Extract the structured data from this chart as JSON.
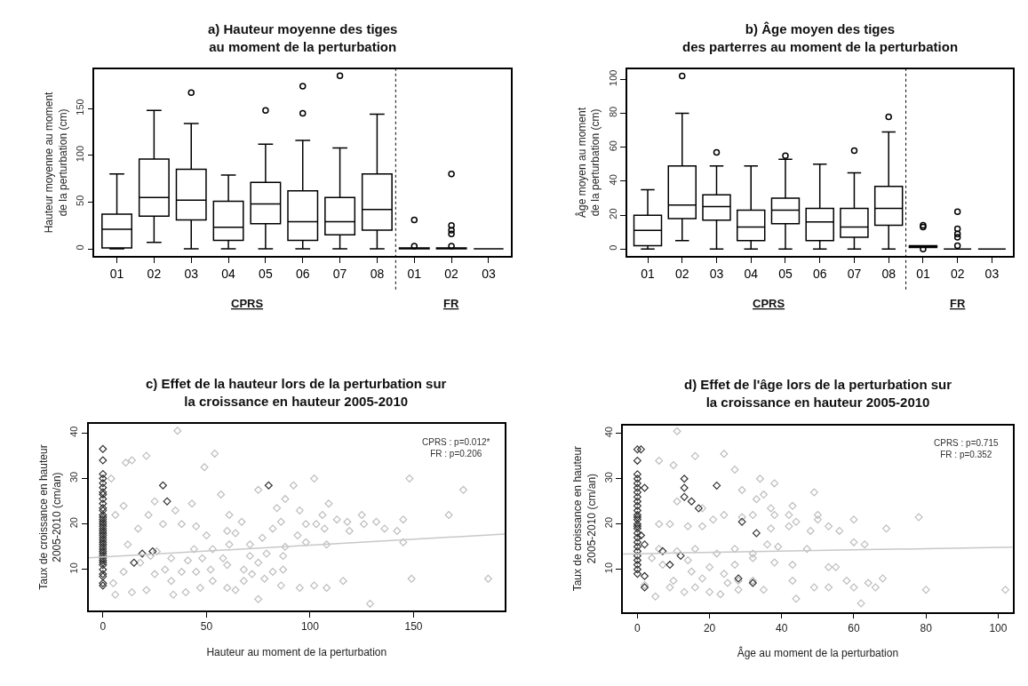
{
  "chart_data": [
    {
      "type": "box",
      "title": "a) Hauteur moyenne des tiges\nau moment de la perturbation",
      "ylabel": "Hauteur moyenne au moment\nde la perturbation (cm)",
      "categories": [
        "01",
        "02",
        "03",
        "04",
        "05",
        "06",
        "07",
        "08",
        "01",
        "02",
        "03"
      ],
      "color": "#000000",
      "ylim": [
        -7.5,
        192
      ],
      "yticks": [
        0,
        50,
        100,
        150
      ],
      "boxes": [
        {
          "low": 0,
          "q1": 1,
          "median": 21,
          "q3": 37,
          "high": 80
        },
        {
          "low": 7,
          "q1": 35,
          "median": 55,
          "q3": 96,
          "high": 148
        },
        {
          "low": 0,
          "q1": 31,
          "median": 52,
          "q3": 85,
          "high": 134,
          "outliers": [
            167
          ]
        },
        {
          "low": 0,
          "q1": 9,
          "median": 23,
          "q3": 51,
          "high": 79
        },
        {
          "low": 0,
          "q1": 27,
          "median": 48,
          "q3": 71,
          "high": 112,
          "outliers": [
            148
          ]
        },
        {
          "low": 0,
          "q1": 9,
          "median": 29,
          "q3": 62,
          "high": 116,
          "outliers": [
            145,
            174
          ]
        },
        {
          "low": 0,
          "q1": 15,
          "median": 29,
          "q3": 55,
          "high": 108,
          "outliers": [
            185
          ]
        },
        {
          "low": 0,
          "q1": 20,
          "median": 42,
          "q3": 80,
          "high": 144
        },
        {
          "low": 0,
          "q1": 0,
          "median": 0,
          "q3": 1,
          "high": 1,
          "outliers": [
            3,
            31
          ]
        },
        {
          "low": 0,
          "q1": 0,
          "median": 0,
          "q3": 1,
          "high": 1,
          "outliers": [
            3,
            16,
            20,
            25,
            80
          ]
        },
        {
          "low": 0,
          "q1": 0,
          "median": 0,
          "q3": 0,
          "high": 0
        }
      ],
      "annotations": [
        "CPRS",
        "FR"
      ]
    },
    {
      "type": "box",
      "title": "b) Âge moyen des tiges\ndes parterres au moment de la perturbation",
      "ylabel": "Âge moyen au moment\nde la perturbation (cm)",
      "categories": [
        "01",
        "02",
        "03",
        "04",
        "05",
        "06",
        "07",
        "08",
        "01",
        "02",
        "03"
      ],
      "color": "#000000",
      "ylim": [
        -4,
        106
      ],
      "yticks": [
        0,
        20,
        40,
        60,
        80,
        100
      ],
      "boxes": [
        {
          "low": 0,
          "q1": 2,
          "median": 11,
          "q3": 20,
          "high": 35
        },
        {
          "low": 5,
          "q1": 18,
          "median": 26,
          "q3": 49,
          "high": 80,
          "outliers": [
            102
          ]
        },
        {
          "low": 0,
          "q1": 17,
          "median": 25,
          "q3": 32,
          "high": 49,
          "outliers": [
            57
          ]
        },
        {
          "low": 0,
          "q1": 5,
          "median": 13,
          "q3": 23,
          "high": 49
        },
        {
          "low": 0,
          "q1": 15,
          "median": 23,
          "q3": 30,
          "high": 53,
          "outliers": [
            55
          ]
        },
        {
          "low": 0,
          "q1": 5,
          "median": 16,
          "q3": 24,
          "high": 50
        },
        {
          "low": 0,
          "q1": 7,
          "median": 13,
          "q3": 24,
          "high": 45,
          "outliers": [
            58
          ]
        },
        {
          "low": 0,
          "q1": 14,
          "median": 24,
          "q3": 37,
          "high": 69,
          "outliers": [
            78
          ]
        },
        {
          "low": 1,
          "q1": 1,
          "median": 1,
          "q3": 2,
          "high": 2,
          "outliers": [
            0,
            13,
            14
          ]
        },
        {
          "low": 0,
          "q1": 0,
          "median": 0,
          "q3": 0,
          "high": 0,
          "outliers": [
            2,
            7,
            9,
            12,
            22
          ]
        },
        {
          "low": 0,
          "q1": 0,
          "median": 0,
          "q3": 0,
          "high": 0
        }
      ],
      "annotations": [
        "CPRS",
        "FR"
      ]
    },
    {
      "type": "scatter",
      "title": "c) Effet de la hauteur lors de la perturbation sur\nla croissance en hauteur 2005-2010",
      "xlabel": "Hauteur au moment de la perturbation",
      "ylabel": "Taux de croissance en hauteur\n2005-2010 (cm/an)",
      "xlim": [
        -7,
        194
      ],
      "xticks": [
        0,
        50,
        100,
        150
      ],
      "ylim": [
        1,
        42
      ],
      "yticks": [
        10,
        20,
        30,
        40
      ],
      "marker": "diamond",
      "annotations": [
        "CPRS : p=0.012*",
        "FR : p=0.206"
      ],
      "series": [
        {
          "color": "#bdbdbd",
          "x": [
            36,
            21,
            11,
            14,
            54,
            49,
            4,
            102,
            148,
            174,
            92,
            75,
            57,
            88,
            25,
            43,
            10,
            35,
            95,
            84,
            109,
            106,
            125,
            132,
            167,
            145,
            113,
            61,
            67,
            22,
            6,
            98,
            103,
            118,
            136,
            142,
            126,
            86,
            82,
            77,
            94,
            107,
            119,
            38,
            45,
            60,
            64,
            50,
            29,
            17,
            145,
            98,
            108,
            88,
            71,
            61,
            53,
            44,
            26,
            12,
            87,
            79,
            71,
            58,
            48,
            41,
            33,
            23,
            18,
            87,
            82,
            75,
            68,
            60,
            52,
            45,
            38,
            30,
            25,
            10,
            5,
            14,
            21,
            33,
            34,
            40,
            47,
            53,
            64,
            60,
            68,
            72,
            78,
            86,
            95,
            102,
            108,
            116,
            149,
            186,
            75,
            129,
            6
          ],
          "values": [
            40.5,
            35,
            33.5,
            34,
            35.5,
            32.5,
            30,
            30,
            30,
            27.5,
            28.5,
            27.5,
            26.5,
            25.5,
            25,
            24.5,
            24,
            23,
            23,
            23.5,
            24.5,
            22,
            22,
            20.5,
            22,
            21,
            21,
            22,
            20.5,
            22,
            22,
            20,
            20,
            20.5,
            19,
            18.5,
            20,
            20.5,
            19,
            17,
            17.5,
            19,
            18.5,
            20,
            19.5,
            18.5,
            18,
            17.5,
            20,
            19,
            16,
            16,
            15.5,
            15,
            15.5,
            15.5,
            14.5,
            14.5,
            14,
            15.5,
            13,
            13.5,
            13,
            12.5,
            12.5,
            12,
            12.5,
            13,
            11.5,
            10,
            9.5,
            11.5,
            10,
            11,
            10,
            9.5,
            9.5,
            10,
            9,
            9.5,
            7,
            5,
            5.5,
            7.5,
            4.5,
            5,
            6,
            7.5,
            5.5,
            6,
            7.5,
            9,
            8,
            6.5,
            6,
            6.5,
            6,
            7.5,
            8,
            8,
            3.5,
            2.5,
            4.5
          ]
        },
        {
          "color": "#333333",
          "x": [
            0,
            0,
            0,
            0,
            0,
            0,
            0,
            0,
            0,
            0,
            0,
            0,
            0,
            0,
            0,
            0,
            0,
            0,
            0,
            0,
            0,
            0,
            0,
            0,
            0,
            0,
            0,
            0,
            0,
            0,
            0,
            0,
            0,
            0,
            0,
            0,
            0,
            0,
            0,
            0,
            29,
            31,
            80,
            15,
            19,
            24
          ],
          "values": [
            36.5,
            34,
            31,
            30,
            29,
            28,
            27,
            26.5,
            25.5,
            24.5,
            23.5,
            23,
            22,
            21.5,
            21,
            20.5,
            20,
            19.5,
            19,
            18.5,
            18,
            17.5,
            17,
            16.5,
            16,
            15.5,
            15,
            14.5,
            14,
            13.5,
            13,
            12.5,
            12,
            11.5,
            11,
            10,
            9,
            8.5,
            7,
            6.5,
            28.5,
            25,
            28.5,
            11.5,
            13.5,
            14
          ]
        },
        {
          "type": "line",
          "color": "#c8c8c8",
          "marker": "none",
          "x": [
            -7,
            194
          ],
          "values": [
            12.6,
            17.8
          ]
        }
      ]
    },
    {
      "type": "scatter",
      "title": "d) Effet de l'âge lors de la perturbation sur\nla croissance en hauteur 2005-2010",
      "xlabel": "Âge au moment de la perturbation",
      "ylabel": "Taux de croissance en hauteur\n2005-2010 (cm/an)",
      "xlim": [
        -4,
        104
      ],
      "xticks": [
        0,
        20,
        40,
        60,
        80,
        100
      ],
      "ylim": [
        0.6,
        41.8
      ],
      "yticks": [
        10,
        20,
        30,
        40
      ],
      "marker": "diamond",
      "annotations": [
        "CPRS : p=0.715",
        "FR : p=0.352"
      ],
      "series": [
        {
          "color": "#bdbdbd",
          "x": [
            11,
            6,
            16,
            24,
            10,
            27,
            34,
            38,
            29,
            49,
            33,
            35,
            43,
            37,
            38,
            42,
            44,
            50,
            50,
            60,
            78,
            69,
            56,
            53,
            48,
            42,
            37,
            32,
            29,
            24,
            21,
            18,
            14,
            9,
            6,
            11,
            18,
            60,
            63,
            39,
            36,
            47,
            32,
            27,
            22,
            16,
            11,
            6,
            4,
            7,
            14,
            20,
            27,
            38,
            43,
            53,
            55,
            43,
            58,
            64,
            68,
            66,
            60,
            53,
            49,
            80,
            102,
            44,
            62,
            35,
            32,
            28,
            23,
            20,
            16,
            13,
            9,
            5,
            2,
            25,
            28,
            18,
            10,
            15,
            24,
            32
          ],
          "values": [
            40.5,
            34,
            35,
            35.5,
            33,
            32,
            30,
            29,
            27.5,
            27,
            25.5,
            26.5,
            24,
            23.5,
            22,
            22,
            20.5,
            22,
            21,
            21,
            21.5,
            19,
            18.5,
            19.5,
            18.5,
            19.5,
            19,
            22,
            21.5,
            22,
            21,
            19.5,
            19.5,
            20,
            20,
            25,
            23.5,
            16,
            15.5,
            15,
            15.5,
            14.5,
            13.5,
            14.5,
            13.5,
            14.5,
            14,
            14.5,
            12.5,
            11,
            12,
            10.5,
            11,
            11.5,
            11,
            10.5,
            10.5,
            7.5,
            7.5,
            7,
            8,
            6,
            6,
            6,
            6,
            5.5,
            5.5,
            3.5,
            2.5,
            5.5,
            7.5,
            5.5,
            4.5,
            5,
            6,
            5,
            6,
            4,
            6.5,
            7,
            7.5,
            8,
            7.5,
            9.5,
            9,
            12.5
          ]
        },
        {
          "color": "#333333",
          "x": [
            0,
            0,
            0,
            0,
            0,
            0,
            0,
            0,
            0,
            0,
            0,
            0,
            0,
            0,
            0,
            0,
            0,
            0,
            0,
            0,
            0,
            0,
            0,
            0,
            0,
            0,
            0,
            1,
            2,
            2,
            2,
            2,
            1,
            7,
            9,
            12,
            13,
            13,
            13,
            15,
            17,
            22,
            29,
            33,
            28,
            32
          ],
          "values": [
            36.5,
            34,
            31,
            30,
            29,
            28,
            27,
            26,
            25,
            24,
            23,
            22,
            21.5,
            21,
            20,
            19.5,
            19,
            18,
            17,
            16,
            15,
            14,
            13,
            12,
            11,
            10,
            9,
            36.5,
            28,
            15.5,
            8.5,
            6,
            17.5,
            14,
            11,
            13,
            30,
            28,
            26,
            25,
            23.5,
            28.5,
            20.5,
            18,
            8,
            7
          ]
        },
        {
          "type": "line",
          "color": "#c8c8c8",
          "marker": "none",
          "x": [
            -4,
            104
          ],
          "values": [
            13.4,
            14.9
          ]
        }
      ]
    }
  ]
}
